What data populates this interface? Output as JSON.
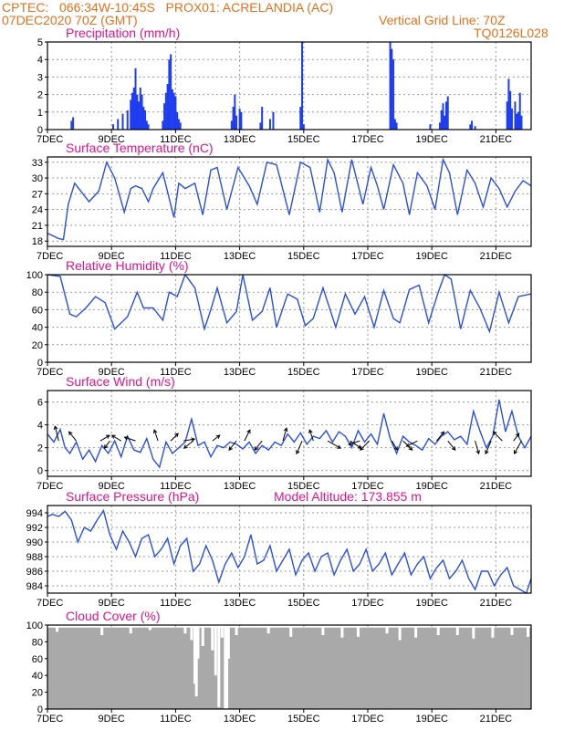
{
  "header": {
    "line1_left": "CPTEC:   066:34W-10:45S   PROX01: ACRELANDIA (AC)",
    "line2_left": "07DEC2020 70Z (GMT)",
    "line2_right": "Vertical Grid Line: 70Z",
    "line3_right": "TQ0126L028"
  },
  "colors": {
    "header": "#e8701a",
    "title": "#e0148c",
    "series": "#2a4fe0",
    "bars": "#1f3df0",
    "cloud": "#a9a9a9",
    "grid": "#9a9a9a"
  },
  "chart_data": [
    {
      "type": "bar",
      "title": "Precipitation (mm/h)",
      "ylim": [
        0,
        5
      ],
      "yticks": [
        0,
        1,
        2,
        3,
        4,
        5
      ],
      "x_ticks": [
        "7DEC",
        "9DEC",
        "11DEC",
        "13DEC",
        "15DEC",
        "17DEC",
        "19DEC",
        "21DEC"
      ],
      "x_tick_days": [
        0,
        2,
        4,
        6,
        8,
        10,
        12,
        14
      ],
      "x_range_days": [
        0,
        15.1
      ],
      "grid": true,
      "x_day": [
        0.75,
        0.8,
        2.05,
        2.2,
        2.35,
        2.5,
        2.6,
        2.65,
        2.7,
        2.75,
        2.8,
        2.85,
        2.9,
        2.95,
        3.0,
        3.05,
        3.1,
        3.15,
        3.6,
        3.65,
        3.7,
        3.75,
        3.8,
        3.85,
        3.9,
        3.95,
        4.0,
        4.05,
        4.1,
        4.15,
        5.75,
        5.8,
        5.85,
        5.9,
        6.0,
        6.05,
        6.65,
        6.7,
        6.95,
        7.05,
        7.9,
        7.95,
        8.0,
        10.7,
        10.75,
        10.8,
        10.85,
        10.9,
        11.95,
        12.25,
        12.3,
        12.35,
        12.4,
        12.45,
        12.5,
        13.2,
        13.25,
        13.35,
        14.35,
        14.4,
        14.45,
        14.5,
        14.6,
        14.65,
        14.7,
        14.75,
        14.8
      ],
      "values": [
        0.5,
        0.7,
        0.3,
        0.6,
        0.9,
        1.1,
        1.7,
        2.1,
        2.4,
        3.5,
        2.0,
        1.6,
        2.4,
        2.0,
        1.3,
        1.1,
        0.5,
        0.3,
        0.5,
        1.5,
        2.1,
        2.6,
        4.0,
        4.3,
        2.3,
        2.1,
        1.9,
        1.0,
        0.6,
        0.4,
        0.5,
        1.3,
        2.0,
        0.8,
        1.2,
        1.0,
        0.4,
        1.3,
        0.6,
        1.0,
        1.3,
        5.0,
        0.3,
        5.0,
        4.6,
        4.0,
        0.6,
        0.4,
        0.3,
        0.4,
        1.1,
        1.5,
        0.8,
        1.6,
        1.9,
        0.3,
        0.5,
        0.2,
        1.6,
        2.9,
        2.2,
        1.2,
        1.6,
        0.9,
        1.0,
        2.1,
        0.8
      ]
    },
    {
      "type": "line",
      "title": "Surface Temperature (nC)",
      "ylim": [
        17,
        34
      ],
      "yticks": [
        18,
        21,
        24,
        27,
        30,
        33
      ],
      "x_ticks": [
        "7DEC",
        "9DEC",
        "11DEC",
        "13DEC",
        "15DEC",
        "17DEC",
        "19DEC",
        "21DEC"
      ],
      "x_tick_days": [
        0,
        2,
        4,
        6,
        8,
        10,
        12,
        14
      ],
      "x_range_days": [
        0,
        15.1
      ],
      "grid": true,
      "x_day": [
        0,
        0.35,
        0.5,
        0.65,
        0.85,
        1.3,
        1.6,
        1.85,
        2.1,
        2.4,
        2.6,
        2.75,
        2.95,
        3.15,
        3.3,
        3.6,
        3.95,
        4.1,
        4.3,
        4.6,
        4.85,
        5.1,
        5.3,
        5.6,
        5.95,
        6.3,
        6.55,
        6.85,
        7.15,
        7.3,
        7.55,
        7.9,
        8.2,
        8.5,
        8.75,
        8.95,
        9.2,
        9.5,
        9.85,
        10.1,
        10.3,
        10.5,
        10.8,
        11.1,
        11.3,
        11.55,
        11.85,
        12.1,
        12.35,
        12.55,
        12.8,
        13.1,
        13.35,
        13.6,
        13.85,
        14.1,
        14.35,
        14.6,
        14.85,
        15.1
      ],
      "values": [
        19.5,
        18.5,
        18.3,
        25.0,
        29.0,
        25.5,
        27.5,
        33.0,
        30.0,
        23.5,
        28.0,
        28.5,
        28.0,
        25.5,
        28.0,
        31.0,
        22.5,
        29.0,
        28.0,
        29.0,
        23.0,
        31.5,
        32.0,
        24.0,
        32.0,
        28.5,
        25.0,
        33.0,
        32.5,
        29.0,
        23.0,
        33.0,
        32.0,
        23.5,
        33.5,
        31.0,
        23.5,
        33.5,
        25.0,
        32.0,
        28.5,
        24.0,
        32.5,
        29.0,
        23.0,
        31.0,
        28.5,
        24.0,
        33.5,
        31.0,
        23.0,
        31.5,
        29.0,
        24.5,
        30.0,
        28.0,
        24.5,
        27.5,
        29.5,
        28.5
      ]
    },
    {
      "type": "line",
      "title": "Relative Humidity (%)",
      "ylim": [
        0,
        100
      ],
      "yticks": [
        0,
        20,
        40,
        60,
        80,
        100
      ],
      "x_ticks": [
        "7DEC",
        "9DEC",
        "11DEC",
        "13DEC",
        "15DEC",
        "17DEC",
        "19DEC",
        "21DEC"
      ],
      "x_tick_days": [
        0,
        2,
        4,
        6,
        8,
        10,
        12,
        14
      ],
      "x_range_days": [
        0,
        15.1
      ],
      "grid": true,
      "x_day": [
        0,
        0.4,
        0.7,
        0.9,
        1.2,
        1.5,
        1.8,
        2.1,
        2.5,
        2.8,
        3.0,
        3.3,
        3.6,
        3.8,
        4.05,
        4.3,
        4.6,
        4.9,
        5.1,
        5.3,
        5.6,
        5.9,
        6.1,
        6.4,
        6.7,
        6.95,
        7.15,
        7.5,
        7.8,
        8.05,
        8.3,
        8.6,
        9.0,
        9.3,
        9.6,
        9.9,
        10.2,
        10.5,
        10.8,
        11.0,
        11.3,
        11.6,
        11.9,
        12.2,
        12.4,
        12.6,
        12.9,
        13.2,
        13.5,
        13.8,
        14.1,
        14.4,
        14.7,
        15.1
      ],
      "values": [
        100,
        98,
        55,
        52,
        62,
        75,
        68,
        38,
        52,
        80,
        62,
        62,
        48,
        80,
        75,
        100,
        85,
        38,
        60,
        85,
        45,
        58,
        100,
        48,
        58,
        85,
        40,
        78,
        72,
        42,
        50,
        85,
        40,
        78,
        55,
        75,
        40,
        82,
        50,
        45,
        83,
        88,
        45,
        80,
        100,
        95,
        38,
        82,
        62,
        35,
        80,
        45,
        75,
        78
      ]
    },
    {
      "type": "line",
      "title": "Surface Wind (m/s)",
      "ylim": [
        -0.5,
        7
      ],
      "yticks": [
        0,
        2,
        4,
        6
      ],
      "x_ticks": [
        "7DEC",
        "9DEC",
        "11DEC",
        "13DEC",
        "15DEC",
        "17DEC",
        "19DEC",
        "21DEC"
      ],
      "x_tick_days": [
        0,
        2,
        4,
        6,
        8,
        10,
        12,
        14
      ],
      "x_range_days": [
        0,
        15.1
      ],
      "grid": true,
      "x_day": [
        0,
        0.2,
        0.4,
        0.55,
        0.7,
        0.9,
        1.1,
        1.3,
        1.5,
        1.7,
        1.9,
        2.1,
        2.3,
        2.5,
        2.7,
        2.9,
        3.1,
        3.3,
        3.5,
        3.7,
        3.9,
        4.1,
        4.3,
        4.5,
        4.7,
        4.9,
        5.1,
        5.3,
        5.5,
        5.7,
        5.9,
        6.1,
        6.3,
        6.5,
        6.7,
        6.9,
        7.1,
        7.3,
        7.5,
        7.7,
        7.9,
        8.1,
        8.3,
        8.5,
        8.7,
        8.9,
        9.1,
        9.3,
        9.5,
        9.7,
        9.9,
        10.1,
        10.3,
        10.5,
        10.7,
        10.9,
        11.1,
        11.3,
        11.5,
        11.7,
        11.9,
        12.1,
        12.3,
        12.5,
        12.7,
        12.9,
        13.1,
        13.3,
        13.5,
        13.7,
        13.9,
        14.1,
        14.3,
        14.5,
        14.7,
        14.9,
        15.1
      ],
      "values": [
        3.2,
        2.5,
        3.6,
        2.0,
        1.5,
        2.5,
        1.0,
        1.8,
        0.8,
        2.2,
        1.5,
        2.6,
        1.2,
        3.0,
        1.8,
        1.6,
        2.8,
        1.0,
        0.3,
        2.5,
        1.5,
        2.0,
        2.5,
        4.5,
        2.2,
        2.5,
        1.2,
        2.2,
        2.0,
        2.5,
        2.3,
        1.9,
        2.5,
        1.5,
        2.2,
        1.8,
        2.5,
        2.2,
        3.2,
        2.5,
        3.3,
        2.3,
        3.0,
        2.8,
        3.5,
        2.5,
        3.4,
        3.0,
        2.0,
        3.5,
        2.5,
        3.2,
        2.3,
        5.0,
        2.8,
        1.5,
        3.0,
        2.5,
        2.2,
        1.8,
        2.8,
        2.3,
        3.0,
        3.4,
        2.7,
        3.0,
        2.3,
        5.2,
        3.5,
        2.0,
        3.0,
        6.2,
        3.4,
        5.2,
        3.0,
        2.0,
        3.0
      ],
      "arrows": [
        {
          "day": 0.35,
          "dx": -4,
          "dy": -16
        },
        {
          "day": 0.9,
          "dx": -8,
          "dy": -10
        },
        {
          "day": 1.65,
          "dx": 10,
          "dy": -6
        },
        {
          "day": 1.95,
          "dx": -6,
          "dy": 8
        },
        {
          "day": 2.3,
          "dx": -10,
          "dy": -6
        },
        {
          "day": 2.75,
          "dx": -12,
          "dy": -4
        },
        {
          "day": 3.45,
          "dx": -4,
          "dy": -12
        },
        {
          "day": 3.85,
          "dx": 8,
          "dy": -8
        },
        {
          "day": 4.25,
          "dx": 12,
          "dy": -2
        },
        {
          "day": 4.55,
          "dx": -10,
          "dy": 8
        },
        {
          "day": 5.15,
          "dx": 8,
          "dy": -6
        },
        {
          "day": 5.9,
          "dx": -8,
          "dy": 10
        },
        {
          "day": 6.15,
          "dx": 6,
          "dy": -12
        },
        {
          "day": 6.7,
          "dx": -8,
          "dy": 10
        },
        {
          "day": 7.35,
          "dx": 4,
          "dy": -14
        },
        {
          "day": 7.95,
          "dx": -6,
          "dy": 14
        },
        {
          "day": 8.3,
          "dx": -4,
          "dy": -12
        },
        {
          "day": 8.75,
          "dx": 14,
          "dy": 8
        },
        {
          "day": 9.45,
          "dx": 12,
          "dy": 8
        },
        {
          "day": 9.75,
          "dx": -12,
          "dy": 4
        },
        {
          "day": 10.05,
          "dx": -10,
          "dy": 10
        },
        {
          "day": 10.75,
          "dx": 6,
          "dy": 10
        },
        {
          "day": 11.1,
          "dx": 10,
          "dy": 10
        },
        {
          "day": 11.55,
          "dx": -12,
          "dy": 6
        },
        {
          "day": 12.15,
          "dx": 8,
          "dy": -10
        },
        {
          "day": 12.5,
          "dx": 8,
          "dy": 10
        },
        {
          "day": 13.35,
          "dx": 4,
          "dy": 14
        },
        {
          "day": 13.85,
          "dx": -6,
          "dy": 14
        },
        {
          "day": 14.2,
          "dx": -10,
          "dy": -10
        },
        {
          "day": 14.55,
          "dx": 6,
          "dy": -8
        },
        {
          "day": 14.8,
          "dx": -8,
          "dy": 14
        }
      ]
    },
    {
      "type": "line",
      "title": "Surface Pressure (hPa)",
      "annotation": "Model Altitude: 173.855  m",
      "ylim": [
        983,
        995
      ],
      "yticks": [
        984,
        986,
        988,
        990,
        992,
        994
      ],
      "x_ticks": [
        "7DEC",
        "9DEC",
        "11DEC",
        "13DEC",
        "15DEC",
        "17DEC",
        "19DEC",
        "21DEC"
      ],
      "x_tick_days": [
        0,
        2,
        4,
        6,
        8,
        10,
        12,
        14
      ],
      "x_range_days": [
        0,
        15.1
      ],
      "grid": true,
      "x_day": [
        0,
        0.15,
        0.35,
        0.55,
        0.75,
        0.95,
        1.15,
        1.35,
        1.55,
        1.75,
        1.95,
        2.15,
        2.35,
        2.55,
        2.75,
        2.95,
        3.15,
        3.35,
        3.55,
        3.75,
        3.95,
        4.15,
        4.35,
        4.55,
        4.75,
        4.95,
        5.15,
        5.35,
        5.55,
        5.75,
        5.95,
        6.15,
        6.35,
        6.55,
        6.75,
        6.95,
        7.15,
        7.35,
        7.55,
        7.75,
        7.95,
        8.15,
        8.35,
        8.55,
        8.75,
        8.95,
        9.15,
        9.35,
        9.55,
        9.75,
        9.95,
        10.15,
        10.35,
        10.55,
        10.75,
        10.95,
        11.15,
        11.35,
        11.55,
        11.75,
        11.95,
        12.15,
        12.35,
        12.55,
        12.75,
        12.95,
        13.15,
        13.35,
        13.55,
        13.75,
        13.95,
        14.15,
        14.35,
        14.55,
        14.75,
        14.95,
        15.1
      ],
      "values": [
        993.5,
        993.8,
        993.5,
        994.2,
        993.0,
        990.0,
        992.0,
        991.5,
        993.0,
        994.3,
        991.0,
        989.0,
        991.5,
        990.0,
        988.0,
        990.5,
        991.0,
        988.0,
        989.0,
        990.5,
        987.0,
        989.5,
        990.5,
        986.0,
        987.0,
        989.5,
        987.5,
        984.5,
        987.0,
        988.5,
        986.5,
        988.0,
        991.0,
        987.0,
        987.5,
        989.5,
        986.0,
        987.5,
        989.0,
        985.5,
        987.5,
        988.5,
        986.0,
        988.0,
        988.5,
        985.5,
        987.5,
        989.0,
        986.0,
        987.0,
        989.0,
        986.0,
        987.0,
        988.5,
        985.5,
        987.0,
        988.5,
        985.5,
        987.0,
        988.0,
        985.0,
        986.5,
        987.5,
        985.0,
        986.0,
        987.5,
        985.0,
        983.5,
        986.0,
        986.0,
        984.0,
        985.5,
        986.5,
        984.0,
        983.5,
        983.0,
        985.0
      ]
    },
    {
      "type": "bar",
      "title": "Cloud Cover (%)",
      "ylim": [
        0,
        100
      ],
      "yticks": [
        0,
        20,
        40,
        60,
        80,
        100
      ],
      "x_ticks": [
        "7DEC",
        "9DEC",
        "11DEC",
        "13DEC",
        "15DEC",
        "17DEC",
        "19DEC",
        "21DEC"
      ],
      "x_tick_days": [
        0,
        2,
        4,
        6,
        8,
        10,
        12,
        14
      ],
      "x_range_days": [
        0,
        15.1
      ],
      "grid": true,
      "baseline_value": 97,
      "dips": [
        {
          "day": 0.3,
          "value": 92
        },
        {
          "day": 1.7,
          "value": 88
        },
        {
          "day": 2.6,
          "value": 90
        },
        {
          "day": 3.2,
          "value": 94
        },
        {
          "day": 4.3,
          "value": 90
        },
        {
          "day": 4.5,
          "value": 82
        },
        {
          "day": 4.6,
          "value": 30
        },
        {
          "day": 4.65,
          "value": 15
        },
        {
          "day": 4.7,
          "value": 60
        },
        {
          "day": 4.85,
          "value": 75
        },
        {
          "day": 5.15,
          "value": 70
        },
        {
          "day": 5.25,
          "value": 40
        },
        {
          "day": 5.35,
          "value": 2
        },
        {
          "day": 5.45,
          "value": 85
        },
        {
          "day": 5.55,
          "value": 0
        },
        {
          "day": 5.6,
          "value": 0
        },
        {
          "day": 5.65,
          "value": 60
        },
        {
          "day": 5.9,
          "value": 88
        },
        {
          "day": 6.9,
          "value": 90
        },
        {
          "day": 7.6,
          "value": 86
        },
        {
          "day": 8.6,
          "value": 88
        },
        {
          "day": 9.2,
          "value": 85
        },
        {
          "day": 9.7,
          "value": 86
        },
        {
          "day": 10.6,
          "value": 90
        },
        {
          "day": 11.0,
          "value": 82
        },
        {
          "day": 11.5,
          "value": 85
        },
        {
          "day": 12.2,
          "value": 88
        },
        {
          "day": 12.8,
          "value": 88
        },
        {
          "day": 13.3,
          "value": 84
        },
        {
          "day": 13.9,
          "value": 85
        },
        {
          "day": 14.5,
          "value": 88
        },
        {
          "day": 15.0,
          "value": 86
        }
      ]
    }
  ]
}
